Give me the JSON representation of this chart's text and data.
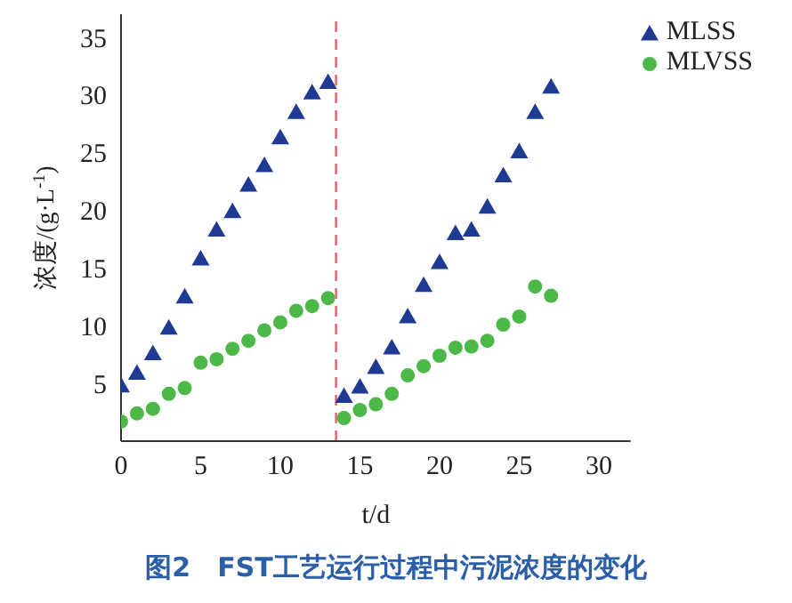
{
  "chart_data": {
    "type": "scatter",
    "title": "图2　FST工艺运行过程中污泥浓度的变化",
    "xlabel": "t/d",
    "ylabel": "浓度/(g·L$^{-1}$)",
    "x": [
      0,
      1,
      2,
      3,
      4,
      5,
      6,
      7,
      8,
      9,
      10,
      11,
      12,
      13,
      14,
      15,
      16,
      17,
      18,
      19,
      20,
      21,
      22,
      23,
      24,
      25,
      26,
      27
    ],
    "series": [
      {
        "name": "MLSS",
        "color": "#1f3a93",
        "marker": "triangle",
        "values": [
          4.8,
          5.9,
          7.6,
          9.8,
          12.5,
          15.8,
          18.3,
          19.9,
          22.2,
          23.9,
          26.3,
          28.5,
          30.2,
          31.1,
          3.9,
          4.7,
          6.4,
          8.1,
          10.8,
          13.5,
          15.5,
          18.0,
          18.3,
          20.3,
          23.0,
          25.1,
          28.5,
          30.7
        ]
      },
      {
        "name": "MLVSS",
        "color": "#4cb848",
        "marker": "circle",
        "values": [
          1.7,
          2.4,
          2.8,
          4.1,
          4.6,
          6.8,
          7.1,
          8.0,
          8.7,
          9.6,
          10.3,
          11.3,
          11.7,
          12.4,
          2.0,
          2.7,
          3.2,
          4.1,
          5.7,
          6.5,
          7.4,
          8.1,
          8.2,
          8.7,
          10.1,
          10.8,
          13.4,
          12.6
        ]
      }
    ],
    "xlim": [
      0,
      32
    ],
    "xticks": [
      0,
      5,
      10,
      15,
      20,
      25,
      30
    ],
    "ylim": [
      0,
      37
    ],
    "yticks": [
      5,
      10,
      15,
      20,
      25,
      30,
      35
    ],
    "ref_lines": [
      {
        "axis": "x",
        "value": 13.5,
        "color": "#e8606a",
        "line_style": "dashed"
      }
    ],
    "grid": false,
    "legend": "top right"
  }
}
